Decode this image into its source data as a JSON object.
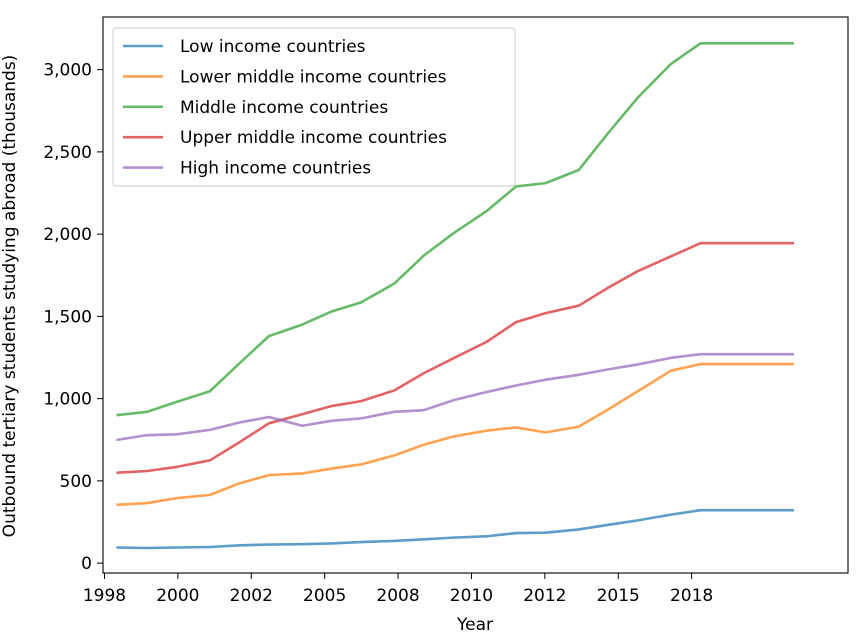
{
  "chart_data": {
    "type": "line",
    "title": "",
    "xlabel": "Year",
    "ylabel": "Outbound tertiary students studying abroad (thousands)",
    "xlim": [
      1998.0,
      2018.2
    ],
    "ylim": [
      -60,
      3320
    ],
    "x_ticks": [
      {
        "value": 1998.04,
        "label": "1998"
      },
      {
        "value": 2000.03,
        "label": "2000"
      },
      {
        "value": 2002.02,
        "label": "2002"
      },
      {
        "value": 2004.01,
        "label": "2005"
      },
      {
        "value": 2006.0,
        "label": "2008"
      },
      {
        "value": 2007.99,
        "label": "2010"
      },
      {
        "value": 2009.98,
        "label": "2012"
      },
      {
        "value": 2011.97,
        "label": "2015"
      },
      {
        "value": 2013.96,
        "label": "2018"
      }
    ],
    "y_ticks": [
      {
        "value": 0,
        "label": "0"
      },
      {
        "value": 500,
        "label": "500"
      },
      {
        "value": 1000,
        "label": "1,000"
      },
      {
        "value": 1500,
        "label": "1,500"
      },
      {
        "value": 2000,
        "label": "2,000"
      },
      {
        "value": 2500,
        "label": "2,500"
      },
      {
        "value": 3000,
        "label": "3,000"
      }
    ],
    "x": [
      1998.4,
      1999.2,
      2000.0,
      2000.9,
      2001.7,
      2002.5,
      2003.4,
      2004.2,
      2005.0,
      2005.9,
      2006.7,
      2007.5,
      2008.4,
      2009.2,
      2010.0,
      2010.9,
      2011.7,
      2012.5,
      2013.4,
      2014.2,
      2015.0,
      2015.9,
      2016.7
    ],
    "series": [
      {
        "name": "Low income countries",
        "color": "#1f77b4",
        "values": [
          95,
          92,
          95,
          98,
          108,
          113,
          115,
          120,
          128,
          135,
          145,
          155,
          163,
          183,
          185,
          205,
          233,
          260,
          295,
          322,
          322,
          322,
          322
        ]
      },
      {
        "name": "Lower middle income countries",
        "color": "#ff7f0e",
        "values": [
          355,
          365,
          395,
          415,
          485,
          535,
          545,
          575,
          600,
          655,
          720,
          770,
          805,
          825,
          795,
          830,
          935,
          1045,
          1170,
          1210,
          1210,
          1210,
          1210
        ]
      },
      {
        "name": "Middle income countries",
        "color": "#2ca02c",
        "values": [
          900,
          920,
          980,
          1045,
          1215,
          1380,
          1450,
          1530,
          1585,
          1700,
          1870,
          2005,
          2140,
          2290,
          2310,
          2390,
          2615,
          2830,
          3035,
          3160,
          3160,
          3160,
          3160
        ]
      },
      {
        "name": "Upper middle income countries",
        "color": "#d62728",
        "values": [
          550,
          560,
          585,
          625,
          735,
          850,
          905,
          955,
          985,
          1050,
          1155,
          1245,
          1345,
          1465,
          1520,
          1565,
          1675,
          1775,
          1865,
          1945,
          1945,
          1945,
          1945
        ]
      },
      {
        "name": "High income countries",
        "color": "#9467bd",
        "values": [
          750,
          778,
          783,
          810,
          855,
          888,
          835,
          865,
          880,
          920,
          930,
          990,
          1040,
          1080,
          1115,
          1145,
          1178,
          1208,
          1248,
          1270,
          1270,
          1270,
          1270
        ]
      }
    ],
    "grid": false,
    "legend_position": "top-left"
  }
}
